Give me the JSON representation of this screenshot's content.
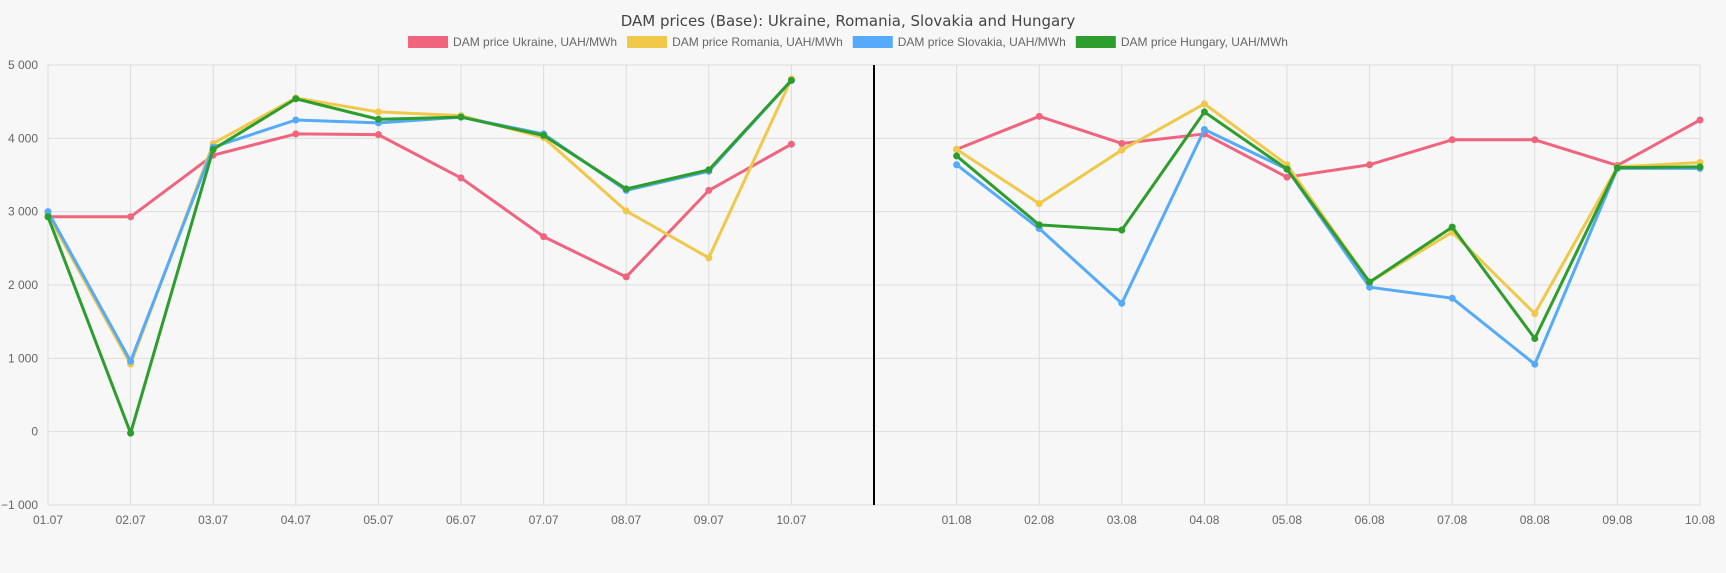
{
  "chart_data": {
    "type": "line",
    "title": "DAM prices (Base): Ukraine, Romania, Slovakia and Hungary",
    "categories": [
      "01.07",
      "02.07",
      "03.07",
      "04.07",
      "05.07",
      "06.07",
      "07.07",
      "08.07",
      "09.07",
      "10.07",
      "",
      "01.08",
      "02.08",
      "03.08",
      "04.08",
      "05.08",
      "06.08",
      "07.08",
      "08.08",
      "09.08",
      "10.08"
    ],
    "ylim": [
      -1000,
      5000
    ],
    "yticks": [
      5000,
      4000,
      3000,
      2000,
      1000,
      0,
      -1000
    ],
    "ytick_labels": [
      "5 000",
      "4 000",
      "3 000",
      "2 000",
      "1 000",
      "0",
      "−1 000"
    ],
    "grid": true,
    "legend_position": "top",
    "divider_category": 10,
    "series": [
      {
        "name": "DAM price Ukraine, UAH/MWh",
        "color": "#f0647e",
        "values": [
          2930,
          2930,
          3770,
          4060,
          4050,
          3460,
          2660,
          2110,
          3290,
          3920,
          null,
          3850,
          4300,
          3930,
          4060,
          3470,
          3640,
          3980,
          3980,
          3630,
          4250
        ]
      },
      {
        "name": "DAM price Romania, UAH/MWh",
        "color": "#f0c84a",
        "values": [
          2960,
          920,
          3930,
          4550,
          4360,
          4310,
          4010,
          3010,
          2370,
          4810,
          null,
          3850,
          3110,
          3840,
          4470,
          3640,
          2040,
          2720,
          1610,
          3610,
          3670
        ]
      },
      {
        "name": "DAM price Slovakia, UAH/MWh",
        "color": "#56aafa",
        "values": [
          3000,
          960,
          3880,
          4250,
          4210,
          4290,
          4060,
          3290,
          3550,
          4790,
          null,
          3640,
          2770,
          1750,
          4120,
          3580,
          1970,
          1820,
          920,
          3590,
          3590
        ]
      },
      {
        "name": "DAM price Hungary, UAH/MWh",
        "color": "#2d9e2d",
        "values": [
          2930,
          -20,
          3850,
          4540,
          4260,
          4290,
          4040,
          3310,
          3570,
          4790,
          null,
          3760,
          2820,
          2750,
          4360,
          3580,
          2040,
          2790,
          1270,
          3600,
          3610
        ]
      }
    ]
  }
}
